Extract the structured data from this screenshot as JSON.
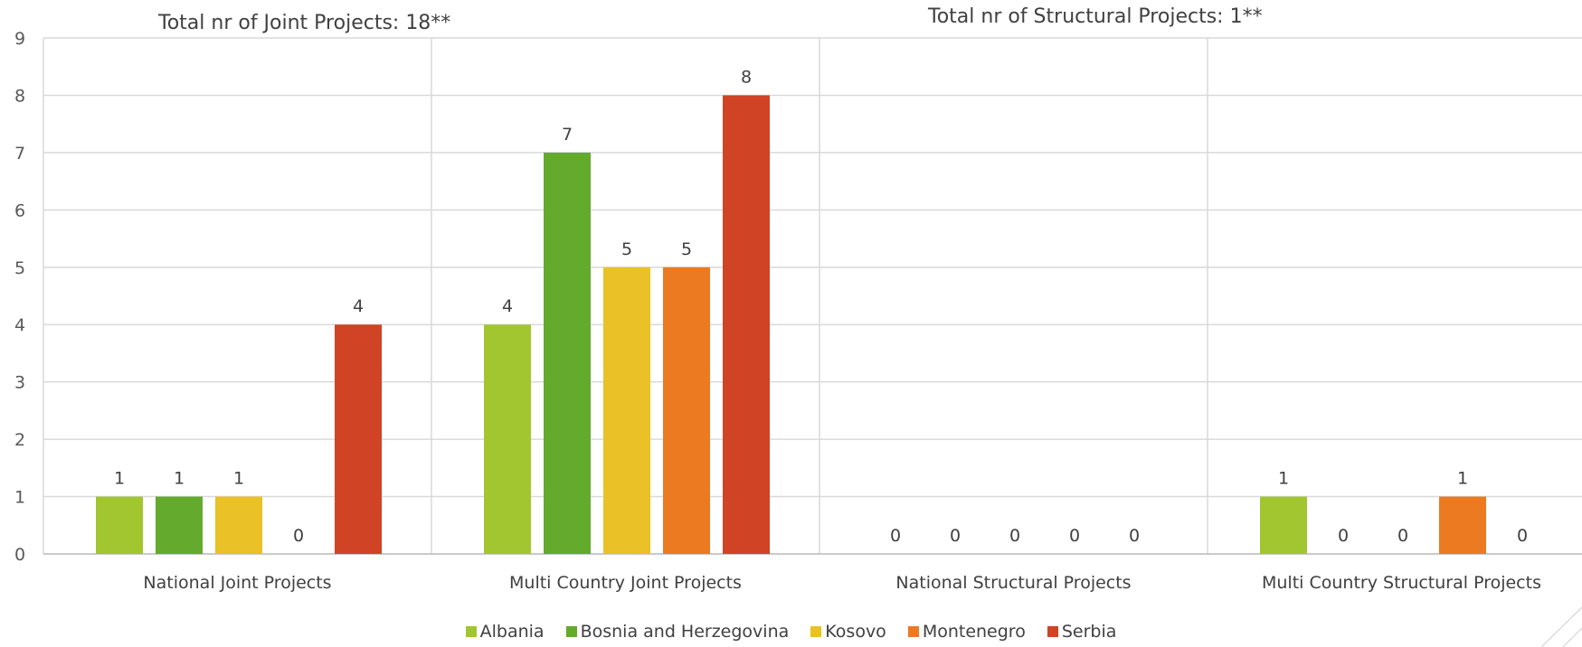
{
  "chart_data": {
    "type": "bar",
    "categories": [
      "National Joint Projects",
      "Multi Country Joint Projects",
      "National Structural Projects",
      "Multi Country Structural Projects"
    ],
    "series": [
      {
        "name": "Albania",
        "color": "#A2C62F",
        "values": [
          1,
          4,
          0,
          1
        ]
      },
      {
        "name": "Bosnia and Herzegovina",
        "color": "#63AA2D",
        "values": [
          1,
          7,
          0,
          0
        ]
      },
      {
        "name": "Kosovo",
        "color": "#EAC126",
        "values": [
          1,
          5,
          0,
          0
        ]
      },
      {
        "name": "Montenegro",
        "color": "#EC7A21",
        "values": [
          0,
          5,
          0,
          1
        ]
      },
      {
        "name": "Serbia",
        "color": "#D14325",
        "values": [
          4,
          8,
          0,
          0
        ]
      }
    ],
    "ylim": [
      0,
      9
    ],
    "yticks": [
      "0",
      "1",
      "2",
      "3",
      "4",
      "5",
      "6",
      "7",
      "8",
      "9"
    ],
    "grid": true,
    "legend_position": "bottom",
    "data_labels": true,
    "annotations": [
      "Total nr of Joint Projects: 18**",
      "Total nr of Structural Projects: 1**"
    ]
  }
}
